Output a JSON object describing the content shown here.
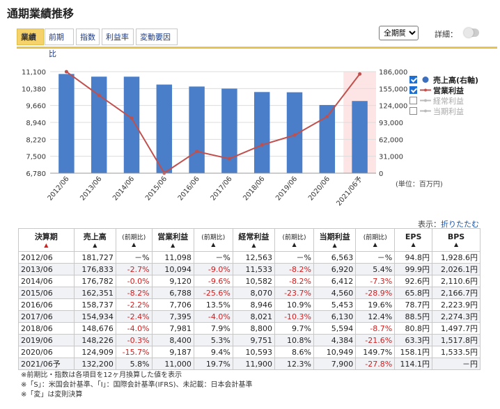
{
  "page_title": "通期業績推移",
  "tabs": [
    {
      "label": "業績",
      "active": true
    },
    {
      "label": "前期比",
      "active": false
    },
    {
      "label": "指数",
      "active": false
    },
    {
      "label": "利益率",
      "active": false
    },
    {
      "label": "変動要因",
      "active": false
    }
  ],
  "period_select": {
    "value": "全期間",
    "options": [
      "全期間"
    ]
  },
  "detail": {
    "label": "詳細：",
    "on": false
  },
  "colors": {
    "bar": "#4a7ec9",
    "line": "#c0504d",
    "forecast_bg": "#fde5e5",
    "accent": "#e7c34d"
  },
  "chart_data": {
    "type": "bar",
    "categories": [
      "2012/06",
      "2013/06",
      "2014/06",
      "2015/06",
      "2016/06",
      "2017/06",
      "2018/06",
      "2019/06",
      "2020/06",
      "2021/06予"
    ],
    "series": [
      {
        "name": "売上高(右軸)",
        "kind": "bar",
        "axis": "left",
        "values": [
          181727,
          176833,
          176782,
          162351,
          158737,
          154934,
          148676,
          148226,
          124909,
          132200
        ]
      },
      {
        "name": "営業利益",
        "kind": "line",
        "axis": "right",
        "values": [
          11098,
          10094,
          9120,
          6788,
          7706,
          7395,
          7981,
          8400,
          9187,
          11000
        ]
      }
    ],
    "left_axis": {
      "ticks": [
        "186,000",
        "155,000",
        "124,000",
        "93,000",
        "62,000",
        "31,000",
        "0"
      ],
      "range": [
        0,
        186000
      ]
    },
    "right_axis": {
      "ticks": [
        "11,100",
        "10,380",
        "9,660",
        "8,940",
        "8,220",
        "7,500",
        "6,780"
      ],
      "range": [
        6780,
        11100
      ]
    },
    "forecast_index": 9,
    "legend": [
      {
        "label": "売上高(右軸)",
        "checked": true,
        "symbol": "dot-blue"
      },
      {
        "label": "営業利益",
        "checked": true,
        "symbol": "line-red"
      },
      {
        "label": "経常利益",
        "checked": false,
        "symbol": "line-gray"
      },
      {
        "label": "当期利益",
        "checked": false,
        "symbol": "line-gray"
      }
    ],
    "unit": "(単位：百万円)"
  },
  "display_label": "表示：",
  "fold_link": "折りたたむ",
  "table": {
    "headers": [
      {
        "label": "決算期",
        "arrow": "▲",
        "arrow_red": true,
        "small": false
      },
      {
        "label": "売上高",
        "arrow": "▲",
        "small": false
      },
      {
        "label": "(前期比)",
        "arrow": "▲",
        "small": true
      },
      {
        "label": "営業利益",
        "arrow": "▲",
        "small": false
      },
      {
        "label": "(前期比)",
        "arrow": "▲",
        "small": true
      },
      {
        "label": "経常利益",
        "arrow": "▲",
        "small": false
      },
      {
        "label": "(前期比)",
        "arrow": "▲",
        "small": true
      },
      {
        "label": "当期利益",
        "arrow": "▲",
        "small": false
      },
      {
        "label": "(前期比)",
        "arrow": "▲",
        "small": true
      },
      {
        "label": "EPS",
        "arrow": "▲",
        "small": false
      },
      {
        "label": "BPS",
        "arrow": "▲",
        "small": false
      }
    ],
    "rows": [
      [
        "2012/06",
        "181,727",
        "－%",
        "11,098",
        "－%",
        "12,563",
        "－%",
        "6,563",
        "－%",
        "94.8円",
        "1,928.6円"
      ],
      [
        "2013/06",
        "176,833",
        "-2.7%",
        "10,094",
        "-9.0%",
        "11,533",
        "-8.2%",
        "6,920",
        "5.4%",
        "99.9円",
        "2,026.1円"
      ],
      [
        "2014/06",
        "176,782",
        "-0.0%",
        "9,120",
        "-9.6%",
        "10,582",
        "-8.2%",
        "6,412",
        "-7.3%",
        "92.6円",
        "2,110.6円"
      ],
      [
        "2015/06",
        "162,351",
        "-8.2%",
        "6,788",
        "-25.6%",
        "8,070",
        "-23.7%",
        "4,560",
        "-28.9%",
        "65.8円",
        "2,166.7円"
      ],
      [
        "2016/06",
        "158,737",
        "-2.2%",
        "7,706",
        "13.5%",
        "8,946",
        "10.9%",
        "5,453",
        "19.6%",
        "78.7円",
        "2,223.9円"
      ],
      [
        "2017/06",
        "154,934",
        "-2.4%",
        "7,395",
        "-4.0%",
        "8,021",
        "-10.3%",
        "6,130",
        "12.4%",
        "88.5円",
        "2,274.3円"
      ],
      [
        "2018/06",
        "148,676",
        "-4.0%",
        "7,981",
        "7.9%",
        "8,800",
        "9.7%",
        "5,594",
        "-8.7%",
        "80.8円",
        "1,497.7円"
      ],
      [
        "2019/06",
        "148,226",
        "-0.3%",
        "8,400",
        "5.3%",
        "9,751",
        "10.8%",
        "4,384",
        "-21.6%",
        "63.3円",
        "1,517.8円"
      ],
      [
        "2020/06",
        "124,909",
        "-15.7%",
        "9,187",
        "9.4%",
        "10,593",
        "8.6%",
        "10,949",
        "149.7%",
        "158.1円",
        "1,533.5円"
      ],
      [
        "2021/06予",
        "132,200",
        "5.8%",
        "11,000",
        "19.7%",
        "11,900",
        "12.3%",
        "7,900",
        "-27.8%",
        "114.1円",
        "－円"
      ]
    ]
  },
  "notes": [
    "※前期比・指数は各項目を12ヶ月換算した値を表示",
    "※「S」：米国会計基準、「I」：国際会計基準(IFRS)、未記載：日本会計基準",
    "※「変」は変則決算"
  ]
}
